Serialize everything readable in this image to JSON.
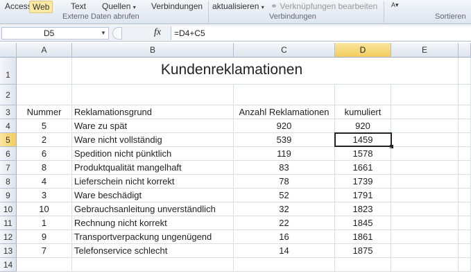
{
  "ribbon": {
    "buttons": [
      "Access",
      "Web",
      "Text",
      "Quellen",
      "Verbindungen",
      "aktualisieren",
      "Verknüpfungen bearbeiten"
    ],
    "groups": [
      "Externe Daten abrufen",
      "Verbindungen",
      "Sortieren"
    ]
  },
  "formula_bar": {
    "name_box": "D5",
    "fx": "fx",
    "formula": "=D4+C5"
  },
  "columns": [
    "A",
    "B",
    "C",
    "D",
    "E"
  ],
  "selected_cell": "D5",
  "sheet": {
    "title": "Kundenreklamationen",
    "headers": [
      "Nummer",
      "Reklamationsgrund",
      "Anzahl Reklamationen",
      "kumuliert"
    ],
    "rows": [
      [
        "5",
        "Ware zu spät",
        "920",
        "920"
      ],
      [
        "2",
        "Ware nicht vollständig",
        "539",
        "1459"
      ],
      [
        "6",
        "Spedition nicht pünktlich",
        "119",
        "1578"
      ],
      [
        "8",
        "Produktqualität mangelhaft",
        "83",
        "1661"
      ],
      [
        "4",
        "Lieferschein nicht korrekt",
        "78",
        "1739"
      ],
      [
        "3",
        "Ware beschädigt",
        "52",
        "1791"
      ],
      [
        "10",
        "Gebrauchsanleitung unverständlich",
        "32",
        "1823"
      ],
      [
        "1",
        "Rechnung nicht korrekt",
        "22",
        "1845"
      ],
      [
        "9",
        "Transportverpackung ungenügend",
        "16",
        "1861"
      ],
      [
        "7",
        "Telefonservice schlecht",
        "14",
        "1875"
      ]
    ]
  },
  "row_numbers": [
    "1",
    "2",
    "3",
    "4",
    "5",
    "6",
    "7",
    "8",
    "9",
    "10",
    "11",
    "12",
    "13",
    "14"
  ]
}
